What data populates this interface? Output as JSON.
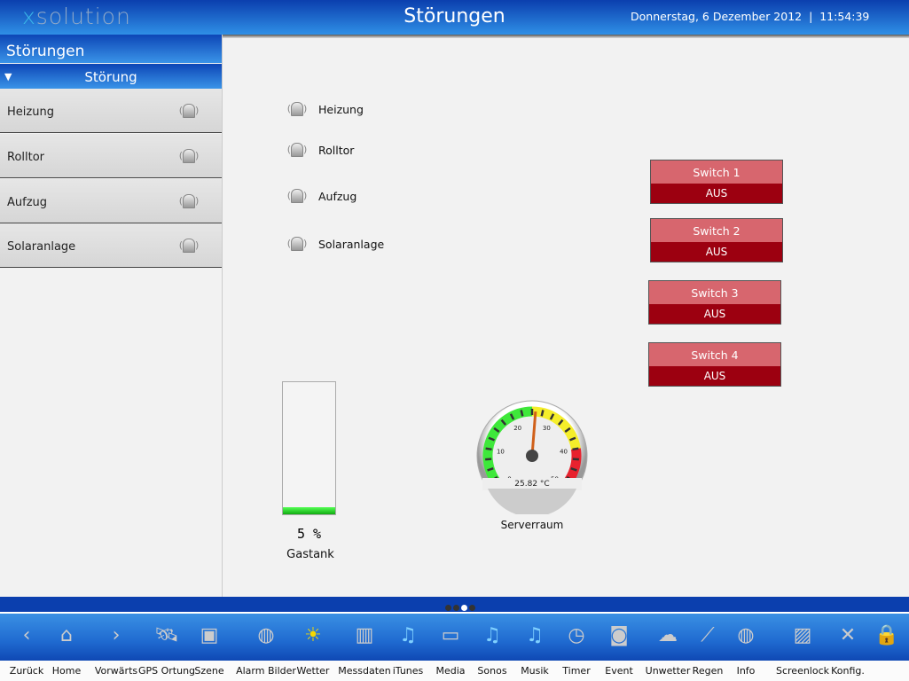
{
  "header": {
    "logo_prefix": "x",
    "logo_rest": "solution",
    "title": "Störungen",
    "datetime": "Donnerstag, 6 Dezember 2012  |  11:54:39"
  },
  "sidebar": {
    "title": "Störungen",
    "section": "Störung",
    "items": [
      {
        "label": "Heizung"
      },
      {
        "label": "Rolltor"
      },
      {
        "label": "Aufzug"
      },
      {
        "label": "Solaranlage"
      }
    ]
  },
  "main": {
    "alarms": [
      {
        "label": "Heizung"
      },
      {
        "label": "Rolltor"
      },
      {
        "label": "Aufzug"
      },
      {
        "label": "Solaranlage"
      }
    ],
    "switches": [
      {
        "label": "Switch 1",
        "state": "AUS"
      },
      {
        "label": "Switch 2",
        "state": "AUS"
      },
      {
        "label": "Switch 3",
        "state": "AUS"
      },
      {
        "label": "Switch 4",
        "state": "AUS"
      }
    ],
    "tank": {
      "value": "5",
      "unit": "%",
      "label": "Gastank",
      "percent": 5
    },
    "gauge": {
      "value": 25.82,
      "readout": "25.82",
      "unit": "°C",
      "label": "Serverraum",
      "min": 0,
      "max": 50,
      "ticks": [
        "0",
        "10",
        "20",
        "30",
        "40",
        "50"
      ],
      "colors": {
        "green": "#3ee83a",
        "yellow": "#f5ee2a",
        "red": "#e8222e"
      }
    }
  },
  "pager": {
    "pages": 4,
    "active": 3
  },
  "dock": [
    {
      "label": "Zurück",
      "icon": "chevron-left-icon",
      "glyph": "‹"
    },
    {
      "label": "Home",
      "icon": "home-icon",
      "glyph": "⌂"
    },
    {
      "label": "Vorwärts",
      "icon": "chevron-right-icon",
      "glyph": "›"
    },
    {
      "label": "GPS Ortung",
      "icon": "satellite-icon",
      "glyph": "🛰"
    },
    {
      "label": "Szene",
      "icon": "clapperboard-icon",
      "glyph": "▣"
    },
    {
      "label": "Alarm Bilder",
      "icon": "globe-icon",
      "glyph": "◍"
    },
    {
      "label": "Wetter",
      "icon": "sun-icon",
      "glyph": "☀"
    },
    {
      "label": "Messdaten",
      "icon": "bar-chart-icon",
      "glyph": "▥"
    },
    {
      "label": "iTunes",
      "icon": "music-note-icon",
      "glyph": "♫"
    },
    {
      "label": "Media",
      "icon": "monitor-icon",
      "glyph": "▭"
    },
    {
      "label": "Sonos",
      "icon": "music-note-icon",
      "glyph": "♫"
    },
    {
      "label": "Musik",
      "icon": "music-note-icon",
      "glyph": "♫"
    },
    {
      "label": "Timer",
      "icon": "clock-icon",
      "glyph": "◷"
    },
    {
      "label": "Event",
      "icon": "alarm-siren-icon",
      "glyph": "◙"
    },
    {
      "label": "Unwetter",
      "icon": "rain-cloud-icon",
      "glyph": "☁"
    },
    {
      "label": "Regen",
      "icon": "umbrella-icon",
      "glyph": "⟋"
    },
    {
      "label": "Info",
      "icon": "globe-icon",
      "glyph": "◍"
    },
    {
      "label": "Screenlock",
      "icon": "picture-icon",
      "glyph": "▨"
    },
    {
      "label": "Konfig.",
      "icon": "tools-icon",
      "glyph": "✕"
    },
    {
      "label": "",
      "icon": "lock-icon",
      "glyph": "🔒"
    }
  ]
}
